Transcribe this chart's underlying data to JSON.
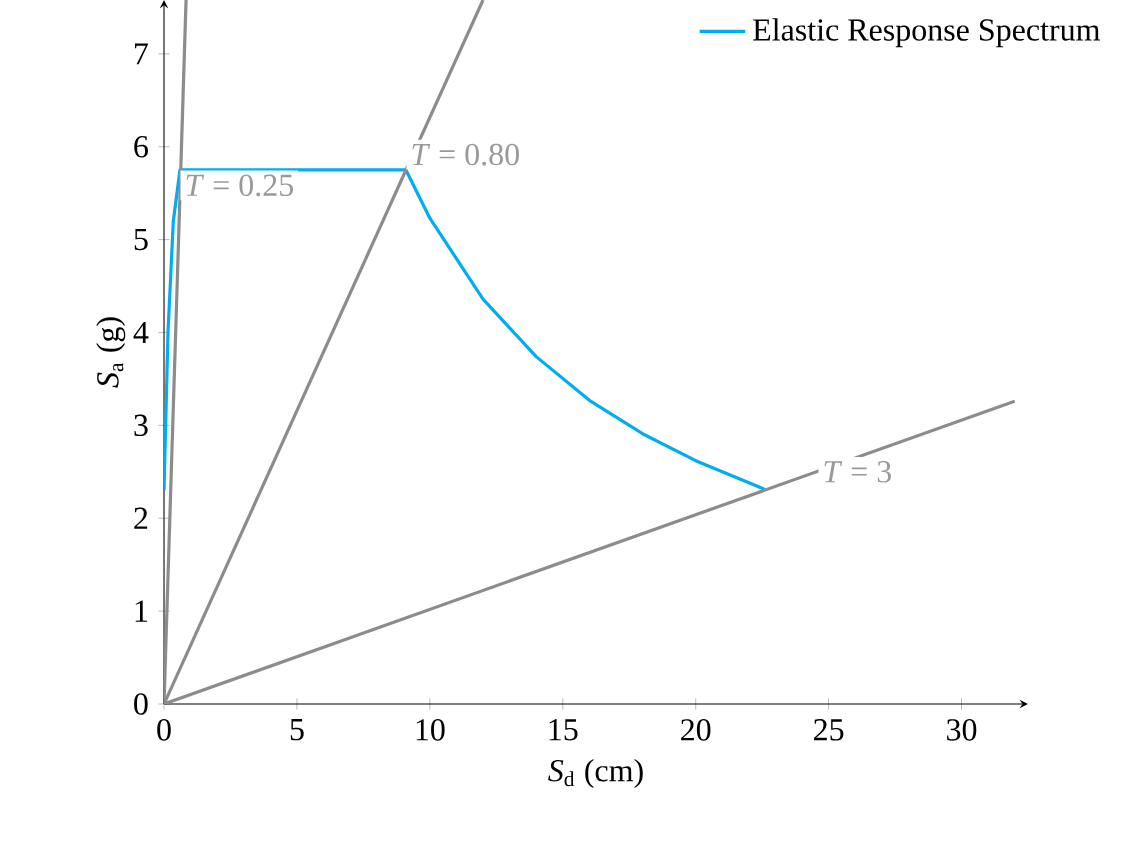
{
  "chart_data": {
    "type": "line",
    "xlabel": "*S*$_{d}$ (cm)",
    "ylabel": "*S*$_{a}$ (g)",
    "xlim": [
      0,
      32.5
    ],
    "ylim": [
      0,
      7.58
    ],
    "xticks": [
      0,
      5,
      10,
      15,
      20,
      25,
      30
    ],
    "yticks": [
      0,
      1,
      2,
      3,
      4,
      5,
      6,
      7
    ],
    "grid": false,
    "legend": "top right",
    "line_style": "solid",
    "series": [
      {
        "name": "Elastic Response Spectrum",
        "color": "#00aeef",
        "x": [
          0,
          0.15,
          0.35,
          0.6,
          9.1,
          10,
          12,
          14,
          16,
          18,
          20,
          22.6
        ],
        "values": [
          2.3,
          4.0,
          5.2,
          5.75,
          5.75,
          5.23,
          4.36,
          3.74,
          3.27,
          2.91,
          2.62,
          2.31
        ]
      },
      {
        "color": "#8c8c8c",
        "x": [
          0,
          0.83
        ],
        "values": [
          0,
          7.58
        ]
      },
      {
        "color": "#8c8c8c",
        "x": [
          0,
          12.0
        ],
        "values": [
          0,
          7.58
        ]
      },
      {
        "color": "#8c8c8c",
        "x": [
          0,
          32
        ],
        "values": [
          0,
          3.26
        ]
      }
    ],
    "annotations": [
      {
        "text": "*T* = 0.25",
        "x": 0.6,
        "y": 5.75
      },
      {
        "text": "*T* = 0.80",
        "x": 9.1,
        "y": 5.75
      },
      {
        "text": "*T* = 3",
        "x": 24.6,
        "y": 2.5
      }
    ]
  }
}
